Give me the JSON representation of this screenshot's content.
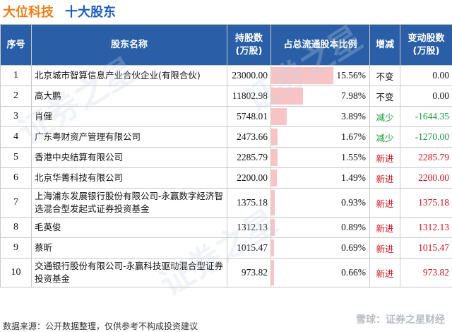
{
  "header": {
    "company": "大位科技",
    "section": "十大股东"
  },
  "table": {
    "columns": {
      "rank": "序号",
      "name": "股东名称",
      "shares": "持股数\n(万股)",
      "ratio": "占总流通股本比例",
      "trend": "增减",
      "change": "变动股数\n(万股)"
    },
    "rows": [
      {
        "rank": "1",
        "name": "北京城市智算信息产业合伙企业(有限合伙)",
        "shares": "23000.00",
        "ratio": "15.56%",
        "ratio_value": 15.56,
        "trend": "不变",
        "change": "0.00"
      },
      {
        "rank": "2",
        "name": "高大鹏",
        "shares": "11802.98",
        "ratio": "7.98%",
        "ratio_value": 7.98,
        "trend": "不变",
        "change": "0.00"
      },
      {
        "rank": "3",
        "name": "肖健",
        "shares": "5748.01",
        "ratio": "3.89%",
        "ratio_value": 3.89,
        "trend": "减少",
        "change": "-1644.35"
      },
      {
        "rank": "4",
        "name": "广东粤财资产管理有限公司",
        "shares": "2473.66",
        "ratio": "1.67%",
        "ratio_value": 1.67,
        "trend": "减少",
        "change": "-1270.00"
      },
      {
        "rank": "5",
        "name": "香港中央结算有限公司",
        "shares": "2285.79",
        "ratio": "1.55%",
        "ratio_value": 1.55,
        "trend": "新进",
        "change": "2285.79"
      },
      {
        "rank": "6",
        "name": "北京华菁科技有限公司",
        "shares": "2200.00",
        "ratio": "1.49%",
        "ratio_value": 1.49,
        "trend": "新进",
        "change": "2200.00"
      },
      {
        "rank": "7",
        "name": "上海浦东发展银行股份有限公司-永赢数字经济智选混合型发起式证券投资基金",
        "shares": "1375.18",
        "ratio": "0.93%",
        "ratio_value": 0.93,
        "trend": "新进",
        "change": "1375.18"
      },
      {
        "rank": "8",
        "name": "毛英俊",
        "shares": "1312.13",
        "ratio": "0.89%",
        "ratio_value": 0.89,
        "trend": "新进",
        "change": "1312.13"
      },
      {
        "rank": "9",
        "name": "蔡昕",
        "shares": "1015.47",
        "ratio": "0.69%",
        "ratio_value": 0.69,
        "trend": "新进",
        "change": "1015.47"
      },
      {
        "rank": "10",
        "name": "交通银行股份有限公司-永赢科技驱动混合型证券投资基金",
        "shares": "973.82",
        "ratio": "0.66%",
        "ratio_value": 0.66,
        "trend": "新进",
        "change": "973.82"
      }
    ]
  },
  "colors": {
    "title_company": "#f07c16",
    "title_section": "#1f5fc0",
    "header_bg": "#2a5fa7",
    "bar": "#f7c3c4",
    "trend_up": "#d0121b",
    "trend_down": "#1a9b3a",
    "trend_flat": "#111111"
  },
  "footer": {
    "source": "数据来源：公开数据整理，仅供参考不构成投资建议"
  },
  "brand": {
    "logo_text": "雪球：证券之星财经",
    "watermark_text": "证券之星"
  }
}
